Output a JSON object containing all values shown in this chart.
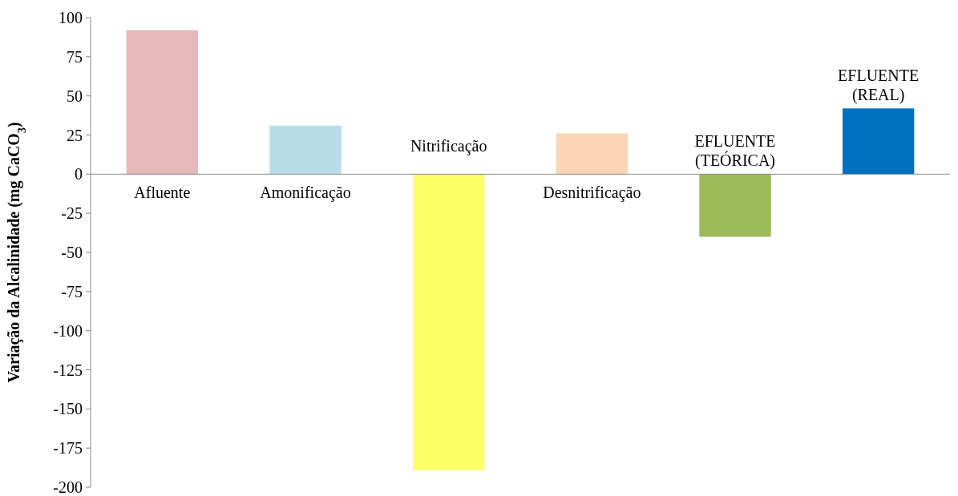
{
  "chart_data": {
    "type": "bar",
    "ylabel": "Variação da Alcalinidade (mg CaCO$_{3}$)",
    "categories": [
      "Afluente",
      "Amonificação",
      "Nitrificação",
      "Desnitrificação",
      "EFLUENTE\n(TEÓRICA)",
      "EFLUENTE\n(REAL)"
    ],
    "values": [
      92,
      31,
      -189,
      26,
      -40,
      42
    ],
    "colors": [
      "#e6b9b8",
      "#b7dee8",
      "#ffff66",
      "#fcd5b5",
      "#9bbb59",
      "#0070c0"
    ],
    "ylim": [
      -200,
      100
    ],
    "yticks": [
      -200,
      -175,
      -150,
      -125,
      -100,
      -75,
      -50,
      -25,
      0,
      25,
      50,
      75,
      100
    ],
    "grid": false
  }
}
